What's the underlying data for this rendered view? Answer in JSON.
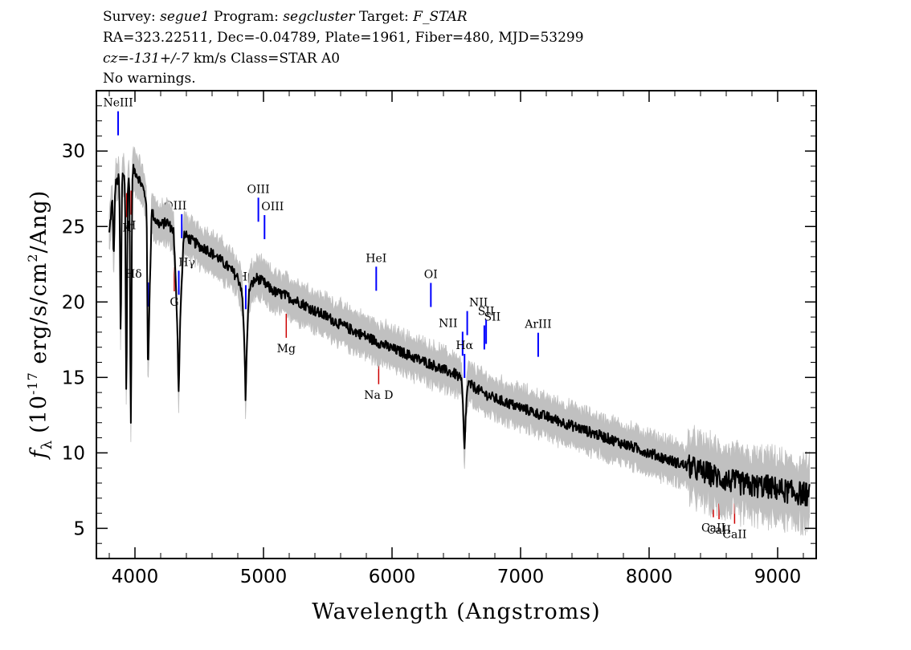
{
  "header": {
    "survey_label": "Survey:",
    "survey": "segue1",
    "program_label": "Program:",
    "program": "segcluster",
    "target_label": "Target:",
    "target": "F_STAR",
    "line2": "RA=323.22511, Dec=-0.04789, Plate=1961, Fiber=480, MJD=53299",
    "cz_label": "cz=",
    "cz_value": "-131+/-7",
    "cz_rest": "km/s  Class=STAR  A0",
    "warnings": "No warnings."
  },
  "chart_data": {
    "type": "line",
    "xlabel": "Wavelength (Angstroms)",
    "ylabel_prefix": "f",
    "ylabel_sub": "λ",
    "ylabel_main": "(10",
    "ylabel_exp1": "-17",
    "ylabel_mid": " erg/s/cm",
    "ylabel_exp2": "2",
    "ylabel_end": "/Ang)",
    "xlim": [
      3700,
      9300
    ],
    "ylim": [
      3,
      34
    ],
    "x_ticks": [
      4000,
      5000,
      6000,
      7000,
      8000,
      9000
    ],
    "x_tick_labels": [
      "4000",
      "5000",
      "6000",
      "7000",
      "8000",
      "9000"
    ],
    "y_ticks": [
      5,
      10,
      15,
      20,
      25,
      30
    ],
    "y_tick_labels": [
      "5",
      "10",
      "15",
      "20",
      "25",
      "30"
    ],
    "colors": {
      "flux": "#000000",
      "error_band": "#c0c0c0",
      "emission": "#0000ff",
      "absorption": "#cc0000"
    },
    "series": [
      {
        "name": "flux",
        "x": [
          3800,
          3830,
          3850,
          3880,
          3900,
          3930,
          3960,
          3980,
          4000,
          4030,
          4060,
          4090,
          4101,
          4130,
          4160,
          4200,
          4250,
          4300,
          4340,
          4380,
          4420,
          4470,
          4520,
          4560,
          4600,
          4650,
          4700,
          4750,
          4800,
          4830,
          4861,
          4890,
          4920,
          4950,
          5000,
          5050,
          5100,
          5150,
          5200,
          5300,
          5400,
          5500,
          5600,
          5700,
          5800,
          5900,
          6000,
          6100,
          6200,
          6300,
          6400,
          6500,
          6540,
          6563,
          6590,
          6650,
          6700,
          6800,
          6900,
          7000,
          7100,
          7200,
          7300,
          7400,
          7500,
          7600,
          7700,
          7800,
          7900,
          8000,
          8100,
          8200,
          8300,
          8400,
          8500,
          8600,
          8700,
          8800,
          8900,
          9000,
          9100,
          9200,
          9250
        ],
        "y": [
          24.5,
          27.5,
          27.8,
          28.3,
          28.5,
          28.4,
          28.3,
          28.8,
          28.7,
          28.2,
          27.6,
          26.7,
          16.0,
          26.0,
          25.4,
          25.1,
          25.3,
          24.7,
          16.5,
          24.5,
          24.2,
          23.9,
          23.6,
          23.5,
          23.2,
          22.9,
          22.5,
          22.1,
          21.6,
          20.9,
          16.0,
          20.9,
          21.3,
          21.6,
          21.3,
          20.9,
          20.6,
          20.5,
          20.3,
          19.9,
          19.4,
          19.0,
          18.5,
          18.1,
          17.7,
          17.3,
          16.9,
          16.6,
          16.2,
          15.9,
          15.5,
          15.2,
          14.8,
          11.5,
          14.6,
          14.3,
          14.0,
          13.6,
          13.3,
          13.0,
          12.7,
          12.4,
          12.1,
          11.8,
          11.5,
          11.2,
          10.9,
          10.6,
          10.3,
          10.0,
          9.7,
          9.4,
          9.1,
          8.8,
          8.5,
          8.2,
          8.0,
          7.8,
          7.8,
          7.6,
          7.4,
          7.3,
          7.2
        ]
      }
    ],
    "absorption_dips": [
      {
        "x": 3835,
        "y": 23.0
      },
      {
        "x": 3889,
        "y": 18.0
      },
      {
        "x": 3933,
        "y": 14.0
      },
      {
        "x": 3968,
        "y": 11.7
      },
      {
        "x": 4101,
        "y": 15.0
      },
      {
        "x": 4340,
        "y": 14.0
      },
      {
        "x": 4861,
        "y": 13.5
      },
      {
        "x": 6563,
        "y": 10.0
      }
    ],
    "emission_lines": [
      {
        "label": "NeIII",
        "x": 3869
      },
      {
        "label": "Hδ",
        "x": 4102
      },
      {
        "label": "Hγ",
        "x": 4341
      },
      {
        "label": "OIII",
        "x": 4364
      },
      {
        "label": "Hβ",
        "x": 4862
      },
      {
        "label": "OIII",
        "x": 4960
      },
      {
        "label": "OIII",
        "x": 5008
      },
      {
        "label": "HeI",
        "x": 5877
      },
      {
        "label": "OI",
        "x": 6302
      },
      {
        "label": "NII",
        "x": 6549
      },
      {
        "label": "Hα",
        "x": 6564
      },
      {
        "label": "NII",
        "x": 6585
      },
      {
        "label": "SII",
        "x": 6718
      },
      {
        "label": "SII",
        "x": 6732
      },
      {
        "label": "ArIII",
        "x": 7137
      }
    ],
    "absorption_lines": [
      {
        "label": "K",
        "x": 3935
      },
      {
        "label": "H",
        "x": 3970
      },
      {
        "label": "G",
        "x": 4306
      },
      {
        "label": "Mg",
        "x": 5177
      },
      {
        "label": "Na D",
        "x": 5896
      },
      {
        "label": "CaII",
        "x": 8500
      },
      {
        "label": "CaII",
        "x": 8544
      },
      {
        "label": "CaII",
        "x": 8665
      }
    ]
  }
}
